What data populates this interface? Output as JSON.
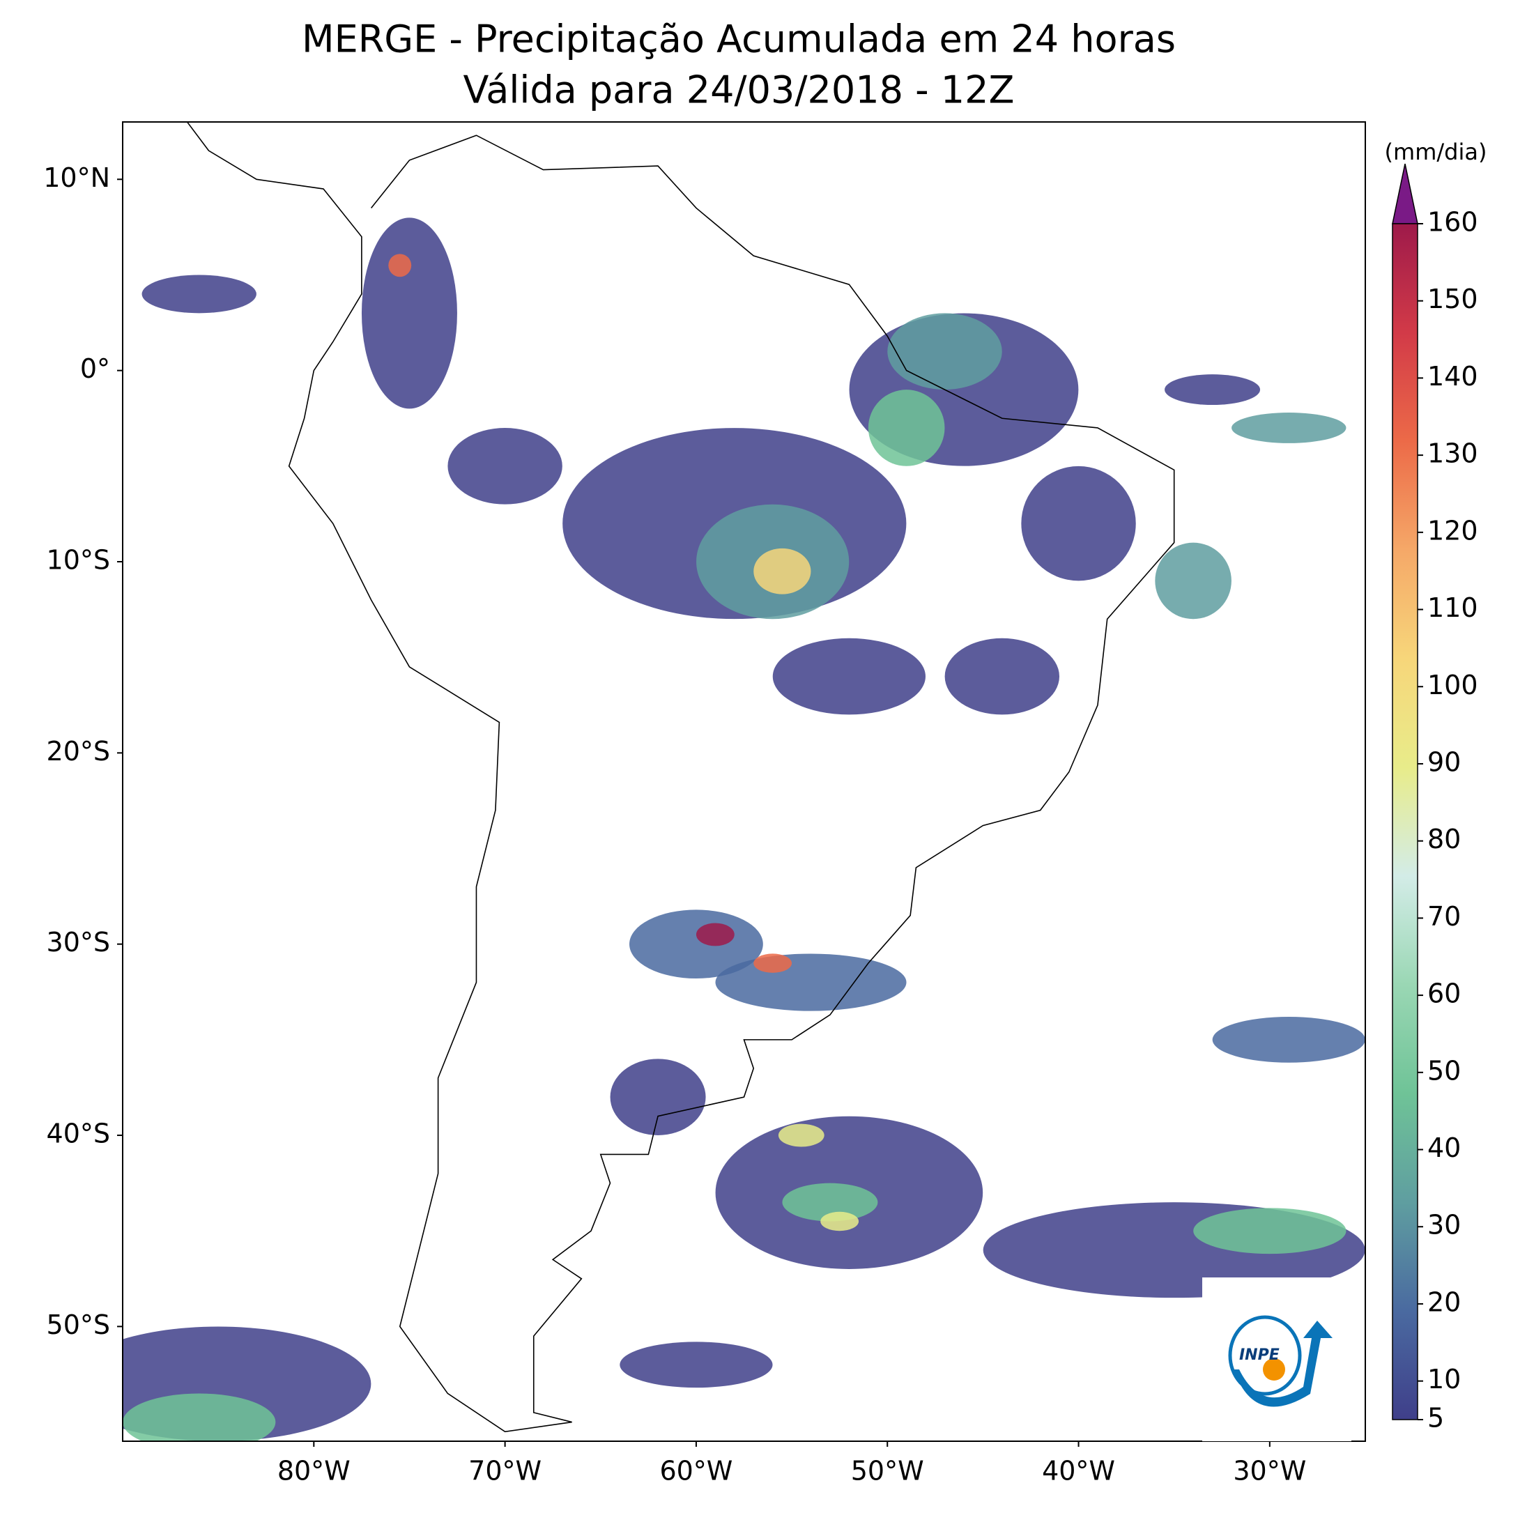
{
  "title": [
    "MERGE - Precipitação Acumulada em 24 horas",
    "Válida para 24/03/2018 - 12Z"
  ],
  "map": {
    "xlim": [
      -90,
      -25
    ],
    "ylim": [
      -56,
      13
    ],
    "xticks": [
      {
        "value": -80,
        "label": "80°W"
      },
      {
        "value": -70,
        "label": "70°W"
      },
      {
        "value": -60,
        "label": "60°W"
      },
      {
        "value": -50,
        "label": "50°W"
      },
      {
        "value": -40,
        "label": "40°W"
      },
      {
        "value": -30,
        "label": "30°W"
      }
    ],
    "yticks": [
      {
        "value": 10,
        "label": "10°N"
      },
      {
        "value": 0,
        "label": "0°"
      },
      {
        "value": -10,
        "label": "10°S"
      },
      {
        "value": -20,
        "label": "20°S"
      },
      {
        "value": -30,
        "label": "30°S"
      },
      {
        "value": -40,
        "label": "40°S"
      },
      {
        "value": -50,
        "label": "50°S"
      }
    ]
  },
  "colorbar": {
    "label": "(mm/dia)",
    "lim": [
      5,
      160
    ],
    "ticks": [
      5,
      10,
      20,
      30,
      40,
      50,
      60,
      70,
      80,
      90,
      100,
      110,
      120,
      130,
      140,
      150,
      160
    ],
    "colors": [
      "#3f3f8a",
      "#4a6aa0",
      "#5f9ea0",
      "#6fc397",
      "#9ad7b4",
      "#d3ece7",
      "#e8ec8a",
      "#f7d67a",
      "#f5a868",
      "#ec6a48",
      "#d23a48",
      "#9e1a4a"
    ],
    "extend_color": "#7a1a86"
  },
  "logo": "INPE"
}
